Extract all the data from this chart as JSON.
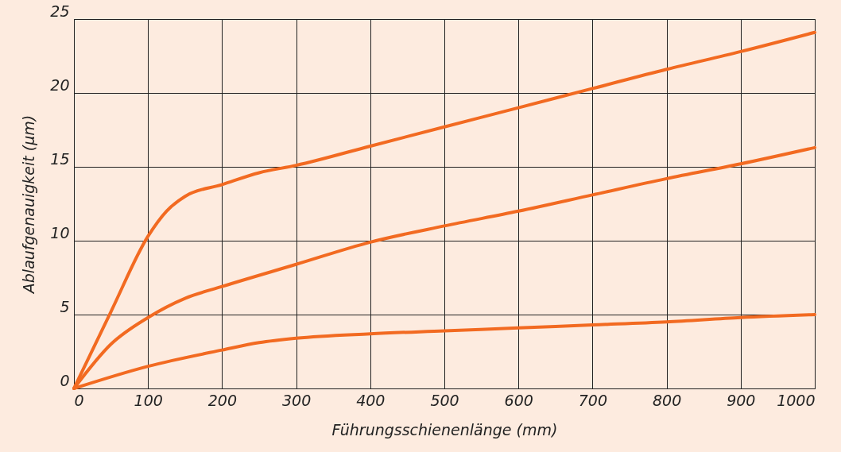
{
  "chart_data": {
    "type": "line",
    "xlabel": "Führungsschienenlänge (mm)",
    "ylabel": "Ablaufgenauigkeit (µm)",
    "xlim": [
      0,
      1000
    ],
    "xticks": [
      0,
      100,
      200,
      300,
      400,
      500,
      600,
      700,
      800,
      900,
      1000
    ],
    "ylim": [
      0,
      25
    ],
    "yticks": [
      0,
      5,
      10,
      15,
      20,
      25
    ],
    "grid": true,
    "legend": false,
    "marker": "none",
    "line_style": "solid",
    "series": [
      {
        "color": "#f26a21",
        "x": [
          0,
          50,
          100,
          125,
          150,
          200,
          250,
          300,
          400,
          500,
          600,
          700,
          800,
          900,
          1000
        ],
        "values": [
          0,
          5.2,
          10.3,
          12,
          13,
          13.8,
          14.6,
          15.1,
          16.4,
          17.7,
          19,
          20.3,
          21.6,
          22.8,
          24.1
        ]
      },
      {
        "color": "#f26a21",
        "x": [
          0,
          50,
          100,
          150,
          200,
          300,
          400,
          500,
          600,
          700,
          800,
          900,
          1000
        ],
        "values": [
          0,
          3,
          4.8,
          6.1,
          6.9,
          8.4,
          9.9,
          11,
          12,
          13.1,
          14.2,
          15.2,
          16.3
        ]
      },
      {
        "color": "#f26a21",
        "x": [
          0,
          100,
          200,
          250,
          300,
          400,
          500,
          600,
          700,
          800,
          900,
          1000
        ],
        "values": [
          0,
          1.5,
          2.6,
          3.1,
          3.4,
          3.7,
          3.9,
          4.1,
          4.3,
          4.5,
          4.8,
          5
        ]
      }
    ]
  }
}
